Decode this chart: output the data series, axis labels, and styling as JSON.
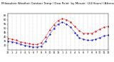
{
  "title": "Milwaukee Weather Outdoor Temp / Dew Point  by Minute  (24 Hours) (Alternate)",
  "bg_color": "#ffffff",
  "grid_color": "#b0b0b0",
  "temp_color": "#dd2222",
  "dew_color": "#2222cc",
  "ylim": [
    25,
    67
  ],
  "yticks": [
    30,
    35,
    40,
    45,
    50,
    55,
    60,
    65
  ],
  "xlim": [
    0,
    1440
  ],
  "title_fontsize": 3.0,
  "tick_fontsize": 2.5,
  "temp_data": [
    [
      0,
      38
    ],
    [
      60,
      37
    ],
    [
      120,
      36
    ],
    [
      180,
      34
    ],
    [
      240,
      33
    ],
    [
      300,
      32
    ],
    [
      360,
      31
    ],
    [
      420,
      31
    ],
    [
      480,
      33
    ],
    [
      540,
      40
    ],
    [
      600,
      48
    ],
    [
      660,
      54
    ],
    [
      720,
      59
    ],
    [
      780,
      61
    ],
    [
      840,
      60
    ],
    [
      900,
      57
    ],
    [
      960,
      52
    ],
    [
      1020,
      47
    ],
    [
      1080,
      44
    ],
    [
      1140,
      44
    ],
    [
      1200,
      44
    ],
    [
      1260,
      46
    ],
    [
      1320,
      49
    ],
    [
      1380,
      51
    ],
    [
      1440,
      52
    ]
  ],
  "dew_data": [
    [
      0,
      35
    ],
    [
      60,
      34
    ],
    [
      120,
      33
    ],
    [
      180,
      31
    ],
    [
      240,
      30
    ],
    [
      300,
      29
    ],
    [
      360,
      28
    ],
    [
      420,
      28
    ],
    [
      480,
      29
    ],
    [
      540,
      35
    ],
    [
      600,
      43
    ],
    [
      660,
      50
    ],
    [
      720,
      55
    ],
    [
      780,
      57
    ],
    [
      840,
      55
    ],
    [
      900,
      51
    ],
    [
      960,
      45
    ],
    [
      990,
      42
    ],
    [
      1020,
      39
    ],
    [
      1080,
      37
    ],
    [
      1140,
      36
    ],
    [
      1200,
      36
    ],
    [
      1260,
      37
    ],
    [
      1320,
      39
    ],
    [
      1380,
      41
    ],
    [
      1440,
      42
    ]
  ],
  "xtick_positions": [
    0,
    60,
    120,
    180,
    240,
    300,
    360,
    420,
    480,
    540,
    600,
    660,
    720,
    780,
    840,
    900,
    960,
    1020,
    1080,
    1140,
    1200,
    1260,
    1320,
    1380,
    1440
  ],
  "xtick_labels": [
    "12",
    "1",
    "2",
    "3",
    "4",
    "5",
    "6",
    "7",
    "8",
    "9",
    "10",
    "11",
    "12",
    "1",
    "2",
    "3",
    "4",
    "5",
    "6",
    "7",
    "8",
    "9",
    "10",
    "11",
    "12"
  ]
}
